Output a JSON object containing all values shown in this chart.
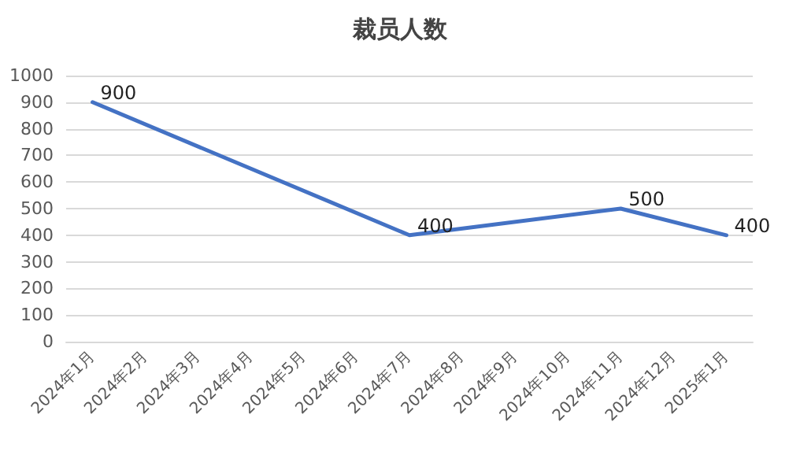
{
  "chart_data": {
    "type": "line",
    "title": "裁员人数",
    "categories": [
      "2024年1月",
      "2024年2月",
      "2024年3月",
      "2024年4月",
      "2024年5月",
      "2024年6月",
      "2024年7月",
      "2024年8月",
      "2024年9月",
      "2024年10月",
      "2024年11月",
      "2024年12月",
      "2025年1月"
    ],
    "series": [
      {
        "color": "#4472c4",
        "values": [
          900,
          null,
          null,
          null,
          null,
          null,
          400,
          null,
          null,
          null,
          500,
          null,
          400
        ]
      }
    ],
    "ylim": [
      0,
      1000
    ],
    "yticks": [
      0,
      100,
      200,
      300,
      400,
      500,
      600,
      700,
      800,
      900,
      1000
    ],
    "grid": "y",
    "data_labels": true,
    "marker": "none",
    "line_style": "solid"
  }
}
